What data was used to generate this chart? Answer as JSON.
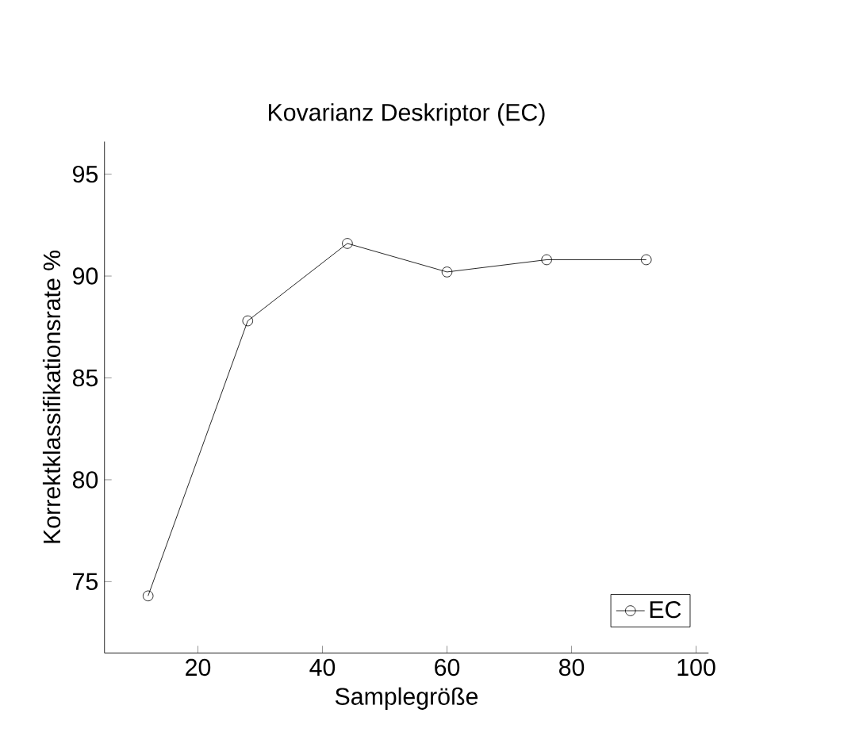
{
  "chart_data": {
    "type": "line",
    "title": "Kovarianz Deskriptor (EC)",
    "xlabel": "Samplegröße",
    "ylabel": "Korrektklassifikationsrate %",
    "x": [
      12,
      28,
      44,
      60,
      76,
      92
    ],
    "series": [
      {
        "name": "EC",
        "color": "#000000",
        "values": [
          74.3,
          87.8,
          91.6,
          90.2,
          90.8,
          90.8
        ]
      }
    ],
    "xlim": [
      5,
      102
    ],
    "ylim": [
      71.5,
      96.6
    ],
    "xticks": [
      20,
      40,
      60,
      80,
      100
    ],
    "yticks": [
      75,
      80,
      85,
      90,
      95
    ],
    "marker": "circle",
    "line_style": "solid",
    "legend": "bottom right",
    "grid": false
  }
}
